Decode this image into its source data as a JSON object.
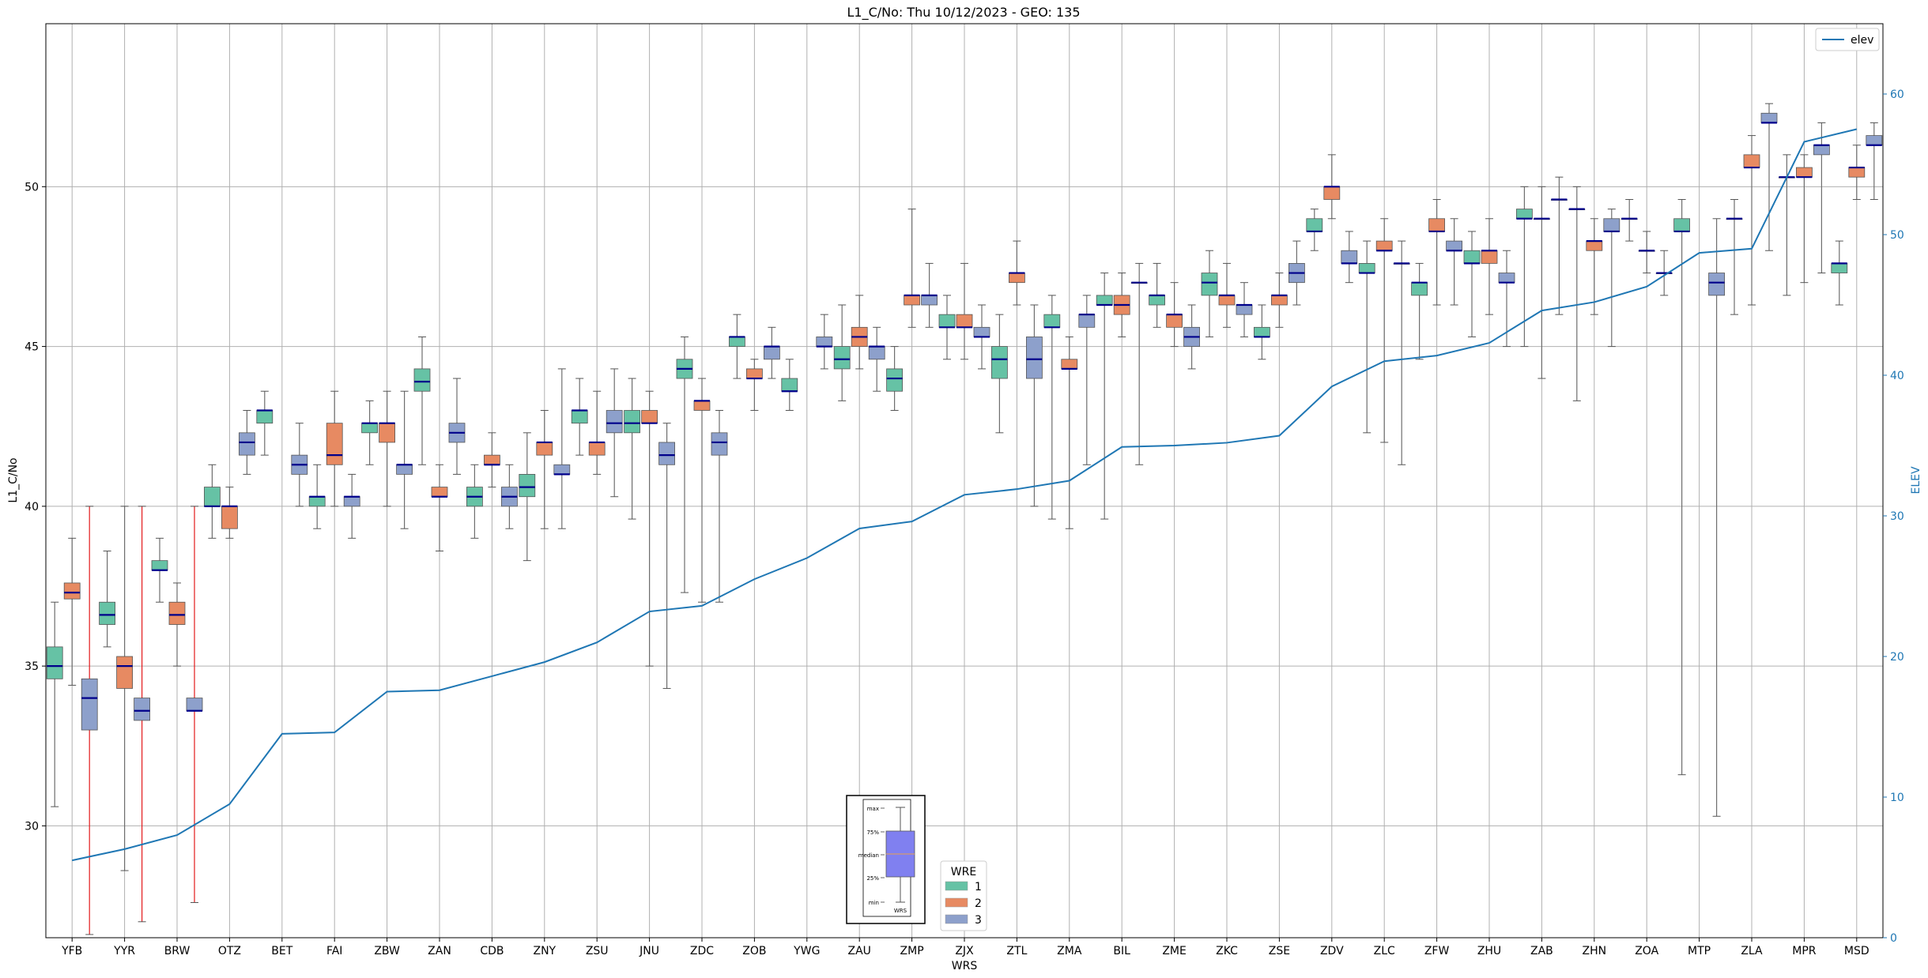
{
  "chart_data": {
    "type": "box",
    "title": "L1_C/No: Thu 10/12/2023 - GEO: 135",
    "xlabel": "WRS",
    "ylabel": "L1_C/No",
    "y2label": "ELEV",
    "ylim": [
      26.5,
      55.1
    ],
    "y2lim": [
      0,
      65
    ],
    "yticks": [
      30,
      35,
      40,
      45,
      50
    ],
    "y2ticks": [
      0,
      10,
      20,
      30,
      40,
      50,
      60
    ],
    "grid": true,
    "categories": [
      "YFB",
      "YYR",
      "BRW",
      "OTZ",
      "BET",
      "FAI",
      "ZBW",
      "ZAN",
      "CDB",
      "ZNY",
      "ZSU",
      "JNU",
      "ZDC",
      "ZOB",
      "YWG",
      "ZAU",
      "ZMP",
      "ZJX",
      "ZTL",
      "ZMA",
      "BIL",
      "ZME",
      "ZKC",
      "ZSE",
      "ZDV",
      "ZLC",
      "ZFW",
      "ZHU",
      "ZAB",
      "ZHN",
      "ZOA",
      "MTP",
      "ZLA",
      "MPR",
      "MSD"
    ],
    "wre_colors": {
      "1": "#66c2a5",
      "2": "#e78a62",
      "3": "#8da0cb"
    },
    "legend": {
      "title": "WRE",
      "entries": [
        "1",
        "2",
        "3"
      ],
      "placement": "bottom-center"
    },
    "line_legend": {
      "entries": [
        "elev"
      ],
      "placement": "top-right"
    },
    "boxes": [
      {
        "wrs": "YFB",
        "wre": 1,
        "min": 30.6,
        "q1": 34.6,
        "median": 35.0,
        "q3": 35.6,
        "max": 37.0
      },
      {
        "wrs": "YFB",
        "wre": 2,
        "min": 34.4,
        "q1": 37.1,
        "median": 37.3,
        "q3": 37.6,
        "max": 39.0
      },
      {
        "wrs": "YFB",
        "wre": 3,
        "min": 26.6,
        "q1": 33.0,
        "median": 34.0,
        "q3": 34.6,
        "max": 40.0,
        "red": true
      },
      {
        "wrs": "YYR",
        "wre": 1,
        "min": 35.6,
        "q1": 36.3,
        "median": 36.6,
        "q3": 37.0,
        "max": 38.6
      },
      {
        "wrs": "YYR",
        "wre": 2,
        "min": 28.6,
        "q1": 34.3,
        "median": 35.0,
        "q3": 35.3,
        "max": 40.0
      },
      {
        "wrs": "YYR",
        "wre": 3,
        "min": 27.0,
        "q1": 33.3,
        "median": 33.6,
        "q3": 34.0,
        "max": 40.0,
        "red": true
      },
      {
        "wrs": "BRW",
        "wre": 1,
        "min": 37.0,
        "q1": 38.0,
        "median": 38.0,
        "q3": 38.3,
        "max": 39.0
      },
      {
        "wrs": "BRW",
        "wre": 2,
        "min": 35.0,
        "q1": 36.3,
        "median": 36.6,
        "q3": 37.0,
        "max": 37.6
      },
      {
        "wrs": "BRW",
        "wre": 3,
        "min": 27.6,
        "q1": 33.6,
        "median": 33.6,
        "q3": 34.0,
        "max": 40.0,
        "red": true
      },
      {
        "wrs": "OTZ",
        "wre": 1,
        "min": 39.0,
        "q1": 40.0,
        "median": 40.0,
        "q3": 40.6,
        "max": 41.3
      },
      {
        "wrs": "OTZ",
        "wre": 2,
        "min": 39.0,
        "q1": 39.3,
        "median": 40.0,
        "q3": 40.0,
        "max": 40.6
      },
      {
        "wrs": "OTZ",
        "wre": 3,
        "min": 41.0,
        "q1": 41.6,
        "median": 42.0,
        "q3": 42.3,
        "max": 43.0
      },
      {
        "wrs": "BET",
        "wre": 1,
        "min": 41.6,
        "q1": 42.6,
        "median": 43.0,
        "q3": 43.0,
        "max": 43.6
      },
      {
        "wrs": "BET",
        "wre": 3,
        "min": 40.0,
        "q1": 41.0,
        "median": 41.3,
        "q3": 41.6,
        "max": 42.6
      },
      {
        "wrs": "FAI",
        "wre": 1,
        "min": 39.3,
        "q1": 40.0,
        "median": 40.3,
        "q3": 40.3,
        "max": 41.3
      },
      {
        "wrs": "FAI",
        "wre": 2,
        "min": 40.0,
        "q1": 41.3,
        "median": 41.6,
        "q3": 42.6,
        "max": 43.6
      },
      {
        "wrs": "FAI",
        "wre": 3,
        "min": 39.0,
        "q1": 40.0,
        "median": 40.3,
        "q3": 40.3,
        "max": 41.0
      },
      {
        "wrs": "ZBW",
        "wre": 1,
        "min": 41.3,
        "q1": 42.3,
        "median": 42.6,
        "q3": 42.6,
        "max": 43.3
      },
      {
        "wrs": "ZBW",
        "wre": 2,
        "min": 40.0,
        "q1": 42.0,
        "median": 42.6,
        "q3": 42.6,
        "max": 43.6
      },
      {
        "wrs": "ZBW",
        "wre": 3,
        "min": 39.3,
        "q1": 41.0,
        "median": 41.3,
        "q3": 41.3,
        "max": 43.6
      },
      {
        "wrs": "ZAN",
        "wre": 1,
        "min": 41.3,
        "q1": 43.6,
        "median": 43.9,
        "q3": 44.3,
        "max": 45.3
      },
      {
        "wrs": "ZAN",
        "wre": 2,
        "min": 38.6,
        "q1": 40.3,
        "median": 40.3,
        "q3": 40.6,
        "max": 41.3
      },
      {
        "wrs": "ZAN",
        "wre": 3,
        "min": 41.0,
        "q1": 42.0,
        "median": 42.3,
        "q3": 42.6,
        "max": 44.0
      },
      {
        "wrs": "CDB",
        "wre": 1,
        "min": 39.0,
        "q1": 40.0,
        "median": 40.3,
        "q3": 40.6,
        "max": 41.3
      },
      {
        "wrs": "CDB",
        "wre": 2,
        "min": 40.6,
        "q1": 41.3,
        "median": 41.3,
        "q3": 41.6,
        "max": 42.3
      },
      {
        "wrs": "CDB",
        "wre": 3,
        "min": 39.3,
        "q1": 40.0,
        "median": 40.3,
        "q3": 40.6,
        "max": 41.3
      },
      {
        "wrs": "ZNY",
        "wre": 1,
        "min": 38.3,
        "q1": 40.3,
        "median": 40.6,
        "q3": 41.0,
        "max": 42.3
      },
      {
        "wrs": "ZNY",
        "wre": 2,
        "min": 39.3,
        "q1": 41.6,
        "median": 42.0,
        "q3": 42.0,
        "max": 43.0
      },
      {
        "wrs": "ZNY",
        "wre": 3,
        "min": 39.3,
        "q1": 41.0,
        "median": 41.0,
        "q3": 41.3,
        "max": 44.3
      },
      {
        "wrs": "ZSU",
        "wre": 1,
        "min": 41.6,
        "q1": 42.6,
        "median": 43.0,
        "q3": 43.0,
        "max": 44.0
      },
      {
        "wrs": "ZSU",
        "wre": 2,
        "min": 41.0,
        "q1": 41.6,
        "median": 42.0,
        "q3": 42.0,
        "max": 43.6
      },
      {
        "wrs": "ZSU",
        "wre": 3,
        "min": 40.3,
        "q1": 42.3,
        "median": 42.6,
        "q3": 43.0,
        "max": 44.3
      },
      {
        "wrs": "JNU",
        "wre": 1,
        "min": 39.6,
        "q1": 42.3,
        "median": 42.6,
        "q3": 43.0,
        "max": 44.0
      },
      {
        "wrs": "JNU",
        "wre": 2,
        "min": 35.0,
        "q1": 42.6,
        "median": 42.6,
        "q3": 43.0,
        "max": 43.6
      },
      {
        "wrs": "JNU",
        "wre": 3,
        "min": 34.3,
        "q1": 41.3,
        "median": 41.6,
        "q3": 42.0,
        "max": 42.6
      },
      {
        "wrs": "ZDC",
        "wre": 1,
        "min": 37.3,
        "q1": 44.0,
        "median": 44.3,
        "q3": 44.6,
        "max": 45.3
      },
      {
        "wrs": "ZDC",
        "wre": 2,
        "min": 37.0,
        "q1": 43.0,
        "median": 43.3,
        "q3": 43.3,
        "max": 44.0
      },
      {
        "wrs": "ZDC",
        "wre": 3,
        "min": 37.0,
        "q1": 41.6,
        "median": 42.0,
        "q3": 42.3,
        "max": 43.0
      },
      {
        "wrs": "ZOB",
        "wre": 1,
        "min": 44.0,
        "q1": 45.0,
        "median": 45.3,
        "q3": 45.3,
        "max": 46.0
      },
      {
        "wrs": "ZOB",
        "wre": 2,
        "min": 43.0,
        "q1": 44.0,
        "median": 44.0,
        "q3": 44.3,
        "max": 44.6
      },
      {
        "wrs": "ZOB",
        "wre": 3,
        "min": 44.0,
        "q1": 44.6,
        "median": 45.0,
        "q3": 45.0,
        "max": 45.6
      },
      {
        "wrs": "YWG",
        "wre": 1,
        "min": 43.0,
        "q1": 43.6,
        "median": 43.6,
        "q3": 44.0,
        "max": 44.6
      },
      {
        "wrs": "YWG",
        "wre": 3,
        "min": 44.3,
        "q1": 45.0,
        "median": 45.0,
        "q3": 45.3,
        "max": 46.0
      },
      {
        "wrs": "ZAU",
        "wre": 1,
        "min": 43.3,
        "q1": 44.3,
        "median": 44.6,
        "q3": 45.0,
        "max": 46.3
      },
      {
        "wrs": "ZAU",
        "wre": 2,
        "min": 44.3,
        "q1": 45.0,
        "median": 45.3,
        "q3": 45.6,
        "max": 46.6
      },
      {
        "wrs": "ZAU",
        "wre": 3,
        "min": 43.6,
        "q1": 44.6,
        "median": 45.0,
        "q3": 45.0,
        "max": 45.6
      },
      {
        "wrs": "ZMP",
        "wre": 1,
        "min": 43.0,
        "q1": 43.6,
        "median": 44.0,
        "q3": 44.3,
        "max": 45.0
      },
      {
        "wrs": "ZMP",
        "wre": 2,
        "min": 45.6,
        "q1": 46.3,
        "median": 46.6,
        "q3": 46.6,
        "max": 49.3
      },
      {
        "wrs": "ZMP",
        "wre": 3,
        "min": 45.6,
        "q1": 46.3,
        "median": 46.6,
        "q3": 46.6,
        "max": 47.6
      },
      {
        "wrs": "ZJX",
        "wre": 1,
        "min": 44.6,
        "q1": 45.6,
        "median": 45.6,
        "q3": 46.0,
        "max": 46.6
      },
      {
        "wrs": "ZJX",
        "wre": 2,
        "min": 44.6,
        "q1": 45.6,
        "median": 45.6,
        "q3": 46.0,
        "max": 47.6
      },
      {
        "wrs": "ZJX",
        "wre": 3,
        "min": 44.3,
        "q1": 45.3,
        "median": 45.3,
        "q3": 45.6,
        "max": 46.3
      },
      {
        "wrs": "ZTL",
        "wre": 1,
        "min": 42.3,
        "q1": 44.0,
        "median": 44.6,
        "q3": 45.0,
        "max": 46.0
      },
      {
        "wrs": "ZTL",
        "wre": 2,
        "min": 46.3,
        "q1": 47.0,
        "median": 47.3,
        "q3": 47.3,
        "max": 48.3
      },
      {
        "wrs": "ZTL",
        "wre": 3,
        "min": 40.0,
        "q1": 44.0,
        "median": 44.6,
        "q3": 45.3,
        "max": 46.3
      },
      {
        "wrs": "ZMA",
        "wre": 1,
        "min": 39.6,
        "q1": 45.6,
        "median": 45.6,
        "q3": 46.0,
        "max": 46.6
      },
      {
        "wrs": "ZMA",
        "wre": 2,
        "min": 39.3,
        "q1": 44.3,
        "median": 44.3,
        "q3": 44.6,
        "max": 45.3
      },
      {
        "wrs": "ZMA",
        "wre": 3,
        "min": 41.3,
        "q1": 45.6,
        "median": 46.0,
        "q3": 46.0,
        "max": 46.6
      },
      {
        "wrs": "BIL",
        "wre": 1,
        "min": 39.6,
        "q1": 46.3,
        "median": 46.3,
        "q3": 46.6,
        "max": 47.3
      },
      {
        "wrs": "BIL",
        "wre": 2,
        "min": 45.3,
        "q1": 46.0,
        "median": 46.3,
        "q3": 46.6,
        "max": 47.3
      },
      {
        "wrs": "BIL",
        "wre": 3,
        "min": 41.3,
        "q1": 47.0,
        "median": 47.0,
        "q3": 47.0,
        "max": 47.6
      },
      {
        "wrs": "ZME",
        "wre": 1,
        "min": 45.6,
        "q1": 46.3,
        "median": 46.6,
        "q3": 46.6,
        "max": 47.6
      },
      {
        "wrs": "ZME",
        "wre": 2,
        "min": 45.0,
        "q1": 45.6,
        "median": 46.0,
        "q3": 46.0,
        "max": 47.0
      },
      {
        "wrs": "ZME",
        "wre": 3,
        "min": 44.3,
        "q1": 45.0,
        "median": 45.3,
        "q3": 45.6,
        "max": 46.3
      },
      {
        "wrs": "ZKC",
        "wre": 1,
        "min": 45.3,
        "q1": 46.6,
        "median": 47.0,
        "q3": 47.3,
        "max": 48.0
      },
      {
        "wrs": "ZKC",
        "wre": 2,
        "min": 45.6,
        "q1": 46.3,
        "median": 46.6,
        "q3": 46.6,
        "max": 47.6
      },
      {
        "wrs": "ZKC",
        "wre": 3,
        "min": 45.3,
        "q1": 46.0,
        "median": 46.3,
        "q3": 46.3,
        "max": 47.0
      },
      {
        "wrs": "ZSE",
        "wre": 1,
        "min": 44.6,
        "q1": 45.3,
        "median": 45.3,
        "q3": 45.6,
        "max": 46.3
      },
      {
        "wrs": "ZSE",
        "wre": 2,
        "min": 45.6,
        "q1": 46.3,
        "median": 46.6,
        "q3": 46.6,
        "max": 47.3
      },
      {
        "wrs": "ZSE",
        "wre": 3,
        "min": 46.3,
        "q1": 47.0,
        "median": 47.3,
        "q3": 47.6,
        "max": 48.3
      },
      {
        "wrs": "ZDV",
        "wre": 1,
        "min": 48.0,
        "q1": 48.6,
        "median": 48.6,
        "q3": 49.0,
        "max": 49.3
      },
      {
        "wrs": "ZDV",
        "wre": 2,
        "min": 49.0,
        "q1": 49.6,
        "median": 50.0,
        "q3": 50.0,
        "max": 51.0
      },
      {
        "wrs": "ZDV",
        "wre": 3,
        "min": 47.0,
        "q1": 47.6,
        "median": 47.6,
        "q3": 48.0,
        "max": 48.6
      },
      {
        "wrs": "ZLC",
        "wre": 1,
        "min": 42.3,
        "q1": 47.3,
        "median": 47.3,
        "q3": 47.6,
        "max": 48.3
      },
      {
        "wrs": "ZLC",
        "wre": 2,
        "min": 42.0,
        "q1": 48.0,
        "median": 48.0,
        "q3": 48.3,
        "max": 49.0
      },
      {
        "wrs": "ZLC",
        "wre": 3,
        "min": 41.3,
        "q1": 47.6,
        "median": 47.6,
        "q3": 47.6,
        "max": 48.3
      },
      {
        "wrs": "ZFW",
        "wre": 1,
        "min": 44.6,
        "q1": 46.6,
        "median": 47.0,
        "q3": 47.0,
        "max": 47.6
      },
      {
        "wrs": "ZFW",
        "wre": 2,
        "min": 46.3,
        "q1": 48.6,
        "median": 48.6,
        "q3": 49.0,
        "max": 49.6
      },
      {
        "wrs": "ZFW",
        "wre": 3,
        "min": 46.3,
        "q1": 48.0,
        "median": 48.0,
        "q3": 48.3,
        "max": 49.0
      },
      {
        "wrs": "ZHU",
        "wre": 1,
        "min": 45.3,
        "q1": 47.6,
        "median": 47.6,
        "q3": 48.0,
        "max": 48.6
      },
      {
        "wrs": "ZHU",
        "wre": 2,
        "min": 46.0,
        "q1": 47.6,
        "median": 48.0,
        "q3": 48.0,
        "max": 49.0
      },
      {
        "wrs": "ZHU",
        "wre": 3,
        "min": 45.0,
        "q1": 47.0,
        "median": 47.0,
        "q3": 47.3,
        "max": 48.0
      },
      {
        "wrs": "ZAB",
        "wre": 1,
        "min": 45.0,
        "q1": 49.0,
        "median": 49.0,
        "q3": 49.3,
        "max": 50.0
      },
      {
        "wrs": "ZAB",
        "wre": 2,
        "min": 44.0,
        "q1": 49.0,
        "median": 49.0,
        "q3": 49.0,
        "max": 50.0
      },
      {
        "wrs": "ZAB",
        "wre": 3,
        "min": 46.0,
        "q1": 49.6,
        "median": 49.6,
        "q3": 49.6,
        "max": 50.3
      },
      {
        "wrs": "ZHN",
        "wre": 1,
        "min": 43.3,
        "q1": 49.3,
        "median": 49.3,
        "q3": 49.3,
        "max": 50.0
      },
      {
        "wrs": "ZHN",
        "wre": 2,
        "min": 46.0,
        "q1": 48.0,
        "median": 48.3,
        "q3": 48.3,
        "max": 49.0
      },
      {
        "wrs": "ZHN",
        "wre": 3,
        "min": 45.0,
        "q1": 48.6,
        "median": 48.6,
        "q3": 49.0,
        "max": 49.3
      },
      {
        "wrs": "ZOA",
        "wre": 1,
        "min": 48.3,
        "q1": 49.0,
        "median": 49.0,
        "q3": 49.0,
        "max": 49.6
      },
      {
        "wrs": "ZOA",
        "wre": 2,
        "min": 47.3,
        "q1": 48.0,
        "median": 48.0,
        "q3": 48.0,
        "max": 48.6
      },
      {
        "wrs": "ZOA",
        "wre": 3,
        "min": 46.6,
        "q1": 47.3,
        "median": 47.3,
        "q3": 47.3,
        "max": 48.0
      },
      {
        "wrs": "MTP",
        "wre": 1,
        "min": 31.6,
        "q1": 48.6,
        "median": 48.6,
        "q3": 49.0,
        "max": 49.6
      },
      {
        "wrs": "MTP",
        "wre": 3,
        "min": 30.3,
        "q1": 46.6,
        "median": 47.0,
        "q3": 47.3,
        "max": 49.0
      },
      {
        "wrs": "ZLA",
        "wre": 1,
        "min": 46.0,
        "q1": 49.0,
        "median": 49.0,
        "q3": 49.0,
        "max": 49.6
      },
      {
        "wrs": "ZLA",
        "wre": 2,
        "min": 46.3,
        "q1": 50.6,
        "median": 50.6,
        "q3": 51.0,
        "max": 51.6
      },
      {
        "wrs": "ZLA",
        "wre": 3,
        "min": 48.0,
        "q1": 52.0,
        "median": 52.0,
        "q3": 52.3,
        "max": 52.6
      },
      {
        "wrs": "MPR",
        "wre": 1,
        "min": 46.6,
        "q1": 50.3,
        "median": 50.3,
        "q3": 50.3,
        "max": 51.0
      },
      {
        "wrs": "MPR",
        "wre": 2,
        "min": 47.0,
        "q1": 50.3,
        "median": 50.3,
        "q3": 50.6,
        "max": 51.0
      },
      {
        "wrs": "MPR",
        "wre": 3,
        "min": 47.3,
        "q1": 51.0,
        "median": 51.3,
        "q3": 51.3,
        "max": 52.0
      },
      {
        "wrs": "MSD",
        "wre": 1,
        "min": 46.3,
        "q1": 47.3,
        "median": 47.6,
        "q3": 47.6,
        "max": 48.3
      },
      {
        "wrs": "MSD",
        "wre": 2,
        "min": 49.6,
        "q1": 50.3,
        "median": 50.6,
        "q3": 50.6,
        "max": 51.3
      },
      {
        "wrs": "MSD",
        "wre": 3,
        "min": 49.6,
        "q1": 51.3,
        "median": 51.3,
        "q3": 51.6,
        "max": 52.0
      }
    ],
    "series": [
      {
        "name": "elev",
        "axis": "right",
        "color": "#1f77b4",
        "values": [
          5.5,
          6.3,
          7.3,
          9.5,
          14.5,
          14.6,
          17.5,
          17.6,
          18.6,
          19.6,
          21.0,
          23.2,
          23.6,
          25.5,
          27.0,
          29.1,
          29.6,
          31.5,
          31.9,
          32.5,
          34.9,
          35.0,
          35.2,
          35.7,
          39.2,
          41.0,
          41.4,
          42.3,
          44.6,
          45.2,
          46.3,
          48.7,
          49.0,
          56.6,
          57.5
        ]
      }
    ],
    "inset_key": {
      "labels": [
        "max",
        "75%",
        "median",
        "25%",
        "min"
      ],
      "xlabel": "WRS"
    }
  }
}
